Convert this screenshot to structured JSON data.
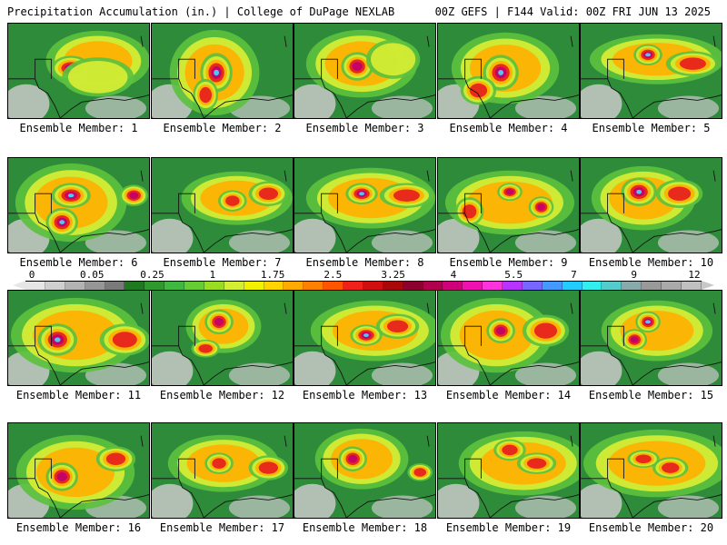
{
  "header": {
    "title": "Precipitation Accumulation (in.) | College of DuPage NEXLAB",
    "valid": "00Z GEFS | F144 Valid: 00Z FRI JUN 13 2025"
  },
  "panels": [
    {
      "label": "Ensemble Member: 1",
      "blobs": [
        [
          100,
          42,
          58,
          34,
          3
        ],
        [
          70,
          50,
          22,
          14,
          6
        ],
        [
          100,
          60,
          40,
          22,
          2
        ]
      ]
    },
    {
      "label": "Ensemble Member: 2",
      "blobs": [
        [
          70,
          55,
          50,
          48,
          3
        ],
        [
          72,
          55,
          18,
          22,
          6
        ],
        [
          60,
          80,
          14,
          18,
          4
        ]
      ]
    },
    {
      "label": "Ensemble Member: 3",
      "blobs": [
        [
          75,
          45,
          62,
          38,
          3
        ],
        [
          70,
          48,
          18,
          16,
          5
        ],
        [
          110,
          40,
          30,
          22,
          2
        ]
      ]
    },
    {
      "label": "Ensemble Member: 4",
      "blobs": [
        [
          75,
          50,
          60,
          40,
          3
        ],
        [
          70,
          55,
          20,
          20,
          6
        ],
        [
          45,
          75,
          20,
          16,
          4
        ]
      ]
    },
    {
      "label": "Ensemble Member: 5",
      "blobs": [
        [
          85,
          40,
          75,
          28,
          3
        ],
        [
          75,
          35,
          16,
          12,
          6
        ],
        [
          125,
          45,
          30,
          14,
          4
        ]
      ]
    },
    {
      "label": "Ensemble Member: 6",
      "blobs": [
        [
          70,
          50,
          62,
          44,
          3
        ],
        [
          70,
          42,
          22,
          14,
          6
        ],
        [
          60,
          72,
          18,
          16,
          6
        ],
        [
          140,
          42,
          16,
          12,
          5
        ]
      ]
    },
    {
      "label": "Ensemble Member: 7",
      "blobs": [
        [
          95,
          45,
          62,
          30,
          3
        ],
        [
          90,
          48,
          16,
          12,
          4
        ],
        [
          130,
          40,
          22,
          14,
          4
        ]
      ]
    },
    {
      "label": "Ensemble Member: 8",
      "blobs": [
        [
          85,
          45,
          72,
          34,
          3
        ],
        [
          75,
          40,
          18,
          12,
          6
        ],
        [
          125,
          42,
          30,
          14,
          4
        ]
      ]
    },
    {
      "label": "Ensemble Member: 9",
      "blobs": [
        [
          80,
          50,
          72,
          36,
          3
        ],
        [
          80,
          38,
          14,
          10,
          5
        ],
        [
          35,
          60,
          16,
          16,
          4
        ],
        [
          115,
          55,
          14,
          12,
          5
        ]
      ]
    },
    {
      "label": "Ensemble Member: 10",
      "blobs": [
        [
          70,
          45,
          58,
          36,
          3
        ],
        [
          65,
          38,
          20,
          16,
          6
        ],
        [
          110,
          40,
          26,
          16,
          4
        ]
      ]
    },
    {
      "label": "Ensemble Member: 11",
      "blobs": [
        [
          75,
          50,
          72,
          42,
          3
        ],
        [
          55,
          55,
          22,
          18,
          6
        ],
        [
          130,
          55,
          28,
          18,
          4
        ]
      ]
    },
    {
      "label": "Ensemble Member: 12",
      "blobs": [
        [
          80,
          40,
          42,
          30,
          3
        ],
        [
          75,
          35,
          16,
          14,
          5
        ],
        [
          60,
          65,
          16,
          10,
          4
        ]
      ]
    },
    {
      "label": "Ensemble Member: 13",
      "blobs": [
        [
          90,
          45,
          72,
          34,
          3
        ],
        [
          80,
          50,
          18,
          12,
          6
        ],
        [
          115,
          40,
          24,
          14,
          4
        ]
      ]
    },
    {
      "label": "Ensemble Member: 14",
      "blobs": [
        [
          65,
          50,
          62,
          42,
          3
        ],
        [
          70,
          45,
          16,
          14,
          5
        ],
        [
          120,
          45,
          26,
          18,
          4
        ]
      ]
    },
    {
      "label": "Ensemble Member: 15",
      "blobs": [
        [
          85,
          45,
          62,
          34,
          3
        ],
        [
          75,
          35,
          14,
          12,
          6
        ],
        [
          60,
          55,
          14,
          12,
          5
        ]
      ]
    },
    {
      "label": "Ensemble Member: 16",
      "blobs": [
        [
          75,
          55,
          66,
          42,
          3
        ],
        [
          60,
          60,
          18,
          16,
          5
        ],
        [
          120,
          40,
          22,
          14,
          4
        ]
      ]
    },
    {
      "label": "Ensemble Member: 17",
      "blobs": [
        [
          80,
          45,
          62,
          32,
          3
        ],
        [
          75,
          45,
          16,
          12,
          4
        ],
        [
          130,
          50,
          22,
          14,
          4
        ]
      ]
    },
    {
      "label": "Ensemble Member: 18",
      "blobs": [
        [
          75,
          40,
          52,
          34,
          3
        ],
        [
          65,
          40,
          16,
          14,
          5
        ],
        [
          140,
          55,
          14,
          10,
          4
        ]
      ]
    },
    {
      "label": "Ensemble Member: 19",
      "blobs": [
        [
          95,
          45,
          72,
          36,
          3
        ],
        [
          110,
          45,
          22,
          12,
          4
        ],
        [
          80,
          30,
          18,
          12,
          4
        ]
      ]
    },
    {
      "label": "Ensemble Member: 20",
      "blobs": [
        [
          85,
          45,
          82,
          38,
          3
        ],
        [
          100,
          50,
          20,
          12,
          4
        ],
        [
          70,
          40,
          18,
          10,
          4
        ]
      ]
    }
  ],
  "colorbar": {
    "labels": [
      "0",
      "0.05",
      "0.25",
      "1",
      "1.75",
      "2.5",
      "3.25",
      "4",
      "5.5",
      "7",
      "9",
      "12"
    ],
    "colors": [
      "#e6e6e6",
      "#cfcfcf",
      "#b3b3b3",
      "#969696",
      "#7a7a7a",
      "#1f7a1f",
      "#2e9a2e",
      "#3fb83f",
      "#66cc33",
      "#99dd22",
      "#d4ee33",
      "#f2f200",
      "#ffd400",
      "#ffaa00",
      "#ff7f00",
      "#ff5500",
      "#f0201a",
      "#d01010",
      "#a80808",
      "#8c0030",
      "#b0004e",
      "#d0007a",
      "#ee10b0",
      "#ff33dd",
      "#b833ff",
      "#7766ff",
      "#4499ff",
      "#22ccff",
      "#33eeee",
      "#55cccc",
      "#88aaaa",
      "#999999",
      "#aaaaaa",
      "#c0c0c0"
    ]
  },
  "map_colors": {
    "base": "#2e8b3a",
    "levels": [
      "#5cc13e",
      "#d8ee33",
      "#ffb000",
      "#e61e1e",
      "#c0006e",
      "#44d8ff"
    ],
    "dry": "#c9c9c9",
    "border": "#111111"
  }
}
